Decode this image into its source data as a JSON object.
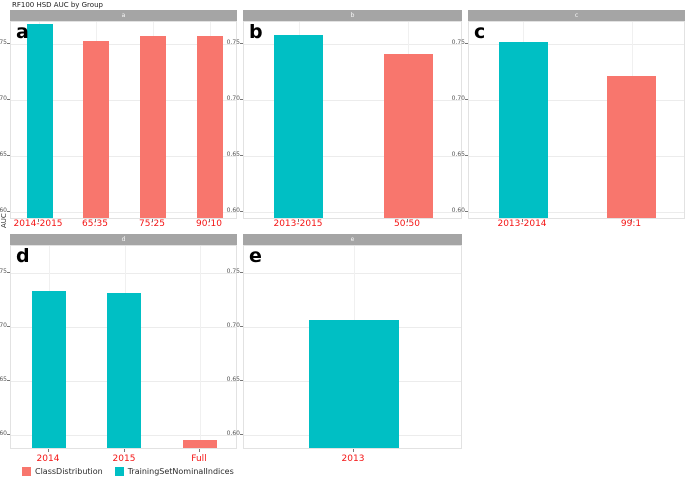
{
  "figure": {
    "title": "RF100 HSD AUC by Group",
    "y_axis_title": "AUC"
  },
  "legend": {
    "items": [
      {
        "name": "ClassDistribution",
        "color": "#F8766D"
      },
      {
        "name": "TrainingSetNominalIndices",
        "color": "#00BFC4"
      }
    ]
  },
  "chart_data": {
    "type": "bar",
    "title": "RF100 HSD AUC by Group",
    "ylabel": "AUC",
    "grid": true,
    "legend_position": "bottom-left",
    "yticks": [
      0.75,
      0.7,
      0.65,
      0.6
    ],
    "axis_text_color": "#f41414",
    "ytick_text_color": "#555555",
    "series_colors": {
      "ClassDistribution": "#F8766D",
      "TrainingSetNominalIndices": "#00BFC4"
    },
    "rows": [
      {
        "ylim": [
          0.593,
          0.77
        ]
      },
      {
        "ylim": [
          0.586,
          0.775
        ]
      }
    ],
    "panels": [
      {
        "letter": "a",
        "strip_label": "a",
        "row": 0,
        "bars": [
          {
            "category": "2014-2015",
            "series": "TrainingSetNominalIndices",
            "value": 0.766
          },
          {
            "category": "65:35",
            "series": "ClassDistribution",
            "value": 0.751
          },
          {
            "category": "75:25",
            "series": "ClassDistribution",
            "value": 0.756
          },
          {
            "category": "90:10",
            "series": "ClassDistribution",
            "value": 0.756
          }
        ]
      },
      {
        "letter": "b",
        "strip_label": "b",
        "row": 0,
        "bars": [
          {
            "category": "2013-2015",
            "series": "TrainingSetNominalIndices",
            "value": 0.757
          },
          {
            "category": "50:50",
            "series": "ClassDistribution",
            "value": 0.74
          }
        ]
      },
      {
        "letter": "c",
        "strip_label": "c",
        "row": 0,
        "bars": [
          {
            "category": "2013-2014",
            "series": "TrainingSetNominalIndices",
            "value": 0.75
          },
          {
            "category": "99:1",
            "series": "ClassDistribution",
            "value": 0.72
          }
        ]
      },
      {
        "letter": "d",
        "strip_label": "d",
        "row": 1,
        "bars": [
          {
            "category": "2014",
            "series": "TrainingSetNominalIndices",
            "value": 0.731
          },
          {
            "category": "2015",
            "series": "TrainingSetNominalIndices",
            "value": 0.73
          },
          {
            "category": "Full",
            "series": "ClassDistribution",
            "value": 0.593
          }
        ]
      },
      {
        "letter": "e",
        "strip_label": "e",
        "row": 1,
        "bars": [
          {
            "category": "2013",
            "series": "TrainingSetNominalIndices",
            "value": 0.705
          }
        ]
      }
    ]
  }
}
